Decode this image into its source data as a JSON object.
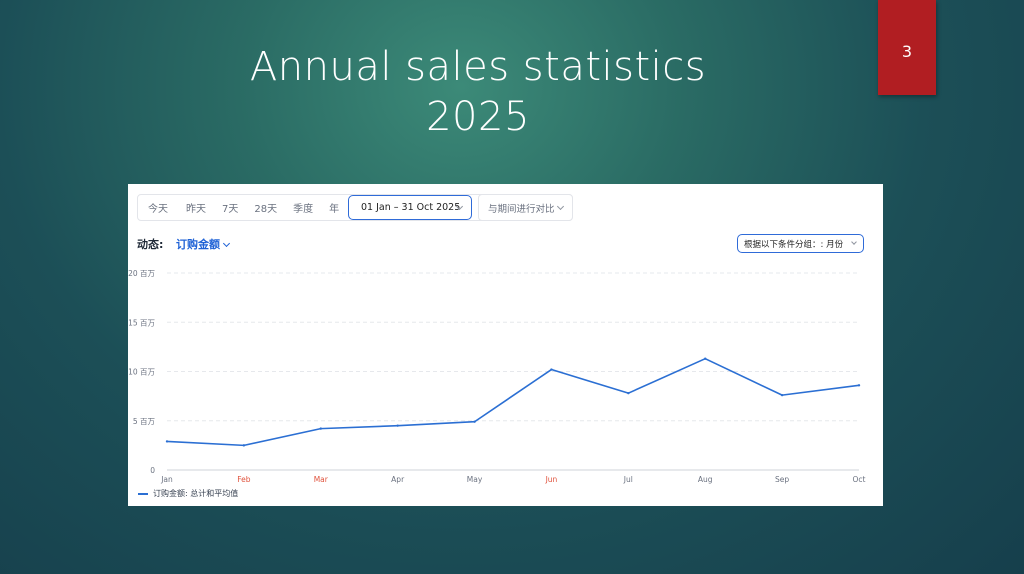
{
  "slide": {
    "title_line1": "Annual sales statistics",
    "title_line2": "2025",
    "page_number": "3"
  },
  "toolbar": {
    "ranges": [
      "今天",
      "昨天",
      "7天",
      "28天",
      "季度",
      "年"
    ],
    "date_range": "01 Jan – 31 Oct 2025",
    "compare": "与期间进行对比"
  },
  "metric": {
    "label": "动态:",
    "selected": "订购金额"
  },
  "grouping": {
    "label": "根据以下条件分组：: 月份"
  },
  "legend": {
    "label": "订购金额: 总计和平均值"
  },
  "colors": {
    "line": "#2b6fd3",
    "highlight_month": "#e0533d",
    "accent": "#2f6bd8",
    "badge": "#b11e22"
  },
  "chart_data": {
    "type": "line",
    "categories": [
      "Jan",
      "Feb",
      "Mar",
      "Apr",
      "May",
      "Jun",
      "Jul",
      "Aug",
      "Sep",
      "Oct"
    ],
    "highlighted_categories": [
      "Feb",
      "Mar",
      "Jun"
    ],
    "series": [
      {
        "name": "订购金额: 总计和平均值",
        "values": [
          2.9,
          2.5,
          4.2,
          4.5,
          4.9,
          10.2,
          7.8,
          11.3,
          7.6,
          8.6
        ]
      }
    ],
    "y_ticks": [
      0,
      5,
      10,
      15,
      20
    ],
    "y_tick_labels": [
      "0",
      "5 百万",
      "10 百万",
      "15 百万",
      "20 百万"
    ],
    "ylim": [
      0,
      20
    ],
    "grid": true
  }
}
